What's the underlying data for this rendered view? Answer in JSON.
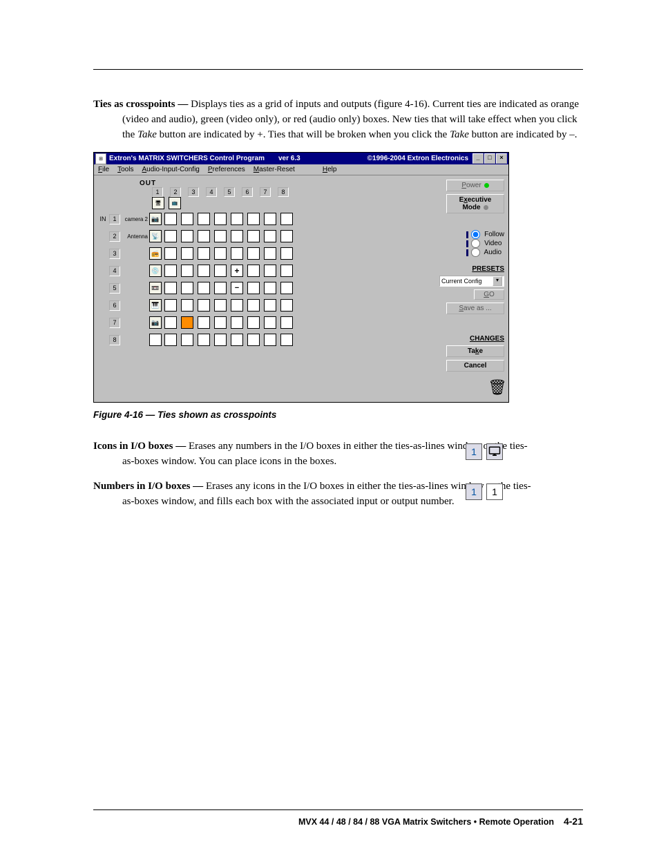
{
  "para_ties": {
    "label": "Ties as crosspoints —",
    "text1": " Displays ties as a grid of inputs and outputs (figure 4-16). Current ties are indicated as orange (video and audio), green (video only), or red (audio only) boxes.  New ties that will take effect when you click the ",
    "take1": "Take",
    "text2": " button are indicated by +.  Ties that will be broken when you click the ",
    "take2": "Take",
    "text3": " button are indicated by –."
  },
  "window": {
    "title": "Extron's MATRIX SWITCHERS Control Program",
    "version": "ver 6.3",
    "copyright": "©1996-2004 Extron Electronics",
    "menus": [
      "File",
      "Tools",
      "Audio-Input-Config",
      "Preferences",
      "Master-Reset",
      "Help"
    ],
    "out_label": "OUT",
    "in_label": "IN",
    "col_count": 8,
    "rows": [
      {
        "num": "1",
        "name": "camera 2",
        "icon": "📷",
        "cells": [
          0,
          0,
          0,
          0,
          0,
          0,
          0,
          0
        ]
      },
      {
        "num": "2",
        "name": "Antenna",
        "icon": "📡",
        "cells": [
          0,
          0,
          0,
          0,
          0,
          0,
          0,
          0
        ]
      },
      {
        "num": "3",
        "name": "",
        "icon": "📻",
        "cells": [
          0,
          0,
          0,
          0,
          0,
          0,
          0,
          0
        ]
      },
      {
        "num": "4",
        "name": "",
        "icon": "💿",
        "cells": [
          0,
          0,
          0,
          0,
          2,
          0,
          0,
          0
        ]
      },
      {
        "num": "5",
        "name": "",
        "icon": "📼",
        "cells": [
          0,
          0,
          0,
          0,
          3,
          0,
          0,
          0
        ]
      },
      {
        "num": "6",
        "name": "",
        "icon": "🎹",
        "cells": [
          0,
          0,
          0,
          0,
          0,
          0,
          0,
          0
        ]
      },
      {
        "num": "7",
        "name": "",
        "icon": "📷",
        "cells": [
          0,
          1,
          0,
          0,
          0,
          0,
          0,
          0
        ]
      },
      {
        "num": "8",
        "name": "",
        "icon": "",
        "cells": [
          0,
          0,
          0,
          0,
          0,
          0,
          0,
          0
        ]
      }
    ],
    "top_icon_cols": [
      1,
      2
    ],
    "side": {
      "power": "Power",
      "exec": "Executive Mode",
      "radios": [
        "Follow",
        "Video",
        "Audio"
      ],
      "radio_selected": 0,
      "presets_title": "PRESETS",
      "combo": "Current Config",
      "go": "GO",
      "saveas": "Save as ...",
      "changes_title": "CHANGES",
      "take": "Take",
      "cancel": "Cancel"
    }
  },
  "caption": "Figure 4-16 — Ties shown as crosspoints",
  "para_icons": {
    "label": "Icons in I/O boxes —",
    "text": " Erases any numbers in the I/O boxes in either the ties-as-lines window or the ties-as-boxes window.  You can place icons in the boxes.",
    "ex_num": "1"
  },
  "para_numbers": {
    "label": "Numbers in I/O boxes —",
    "text": " Erases any icons in the I/O boxes in either the ties-as-lines window or the ties-as-boxes window, and fills each box with the associated input or output number.",
    "ex_a": "1",
    "ex_b": "1"
  },
  "footer": {
    "text": "MVX 44 / 48 / 84 / 88 VGA Matrix Switchers • Remote Operation",
    "page": "4-21"
  }
}
